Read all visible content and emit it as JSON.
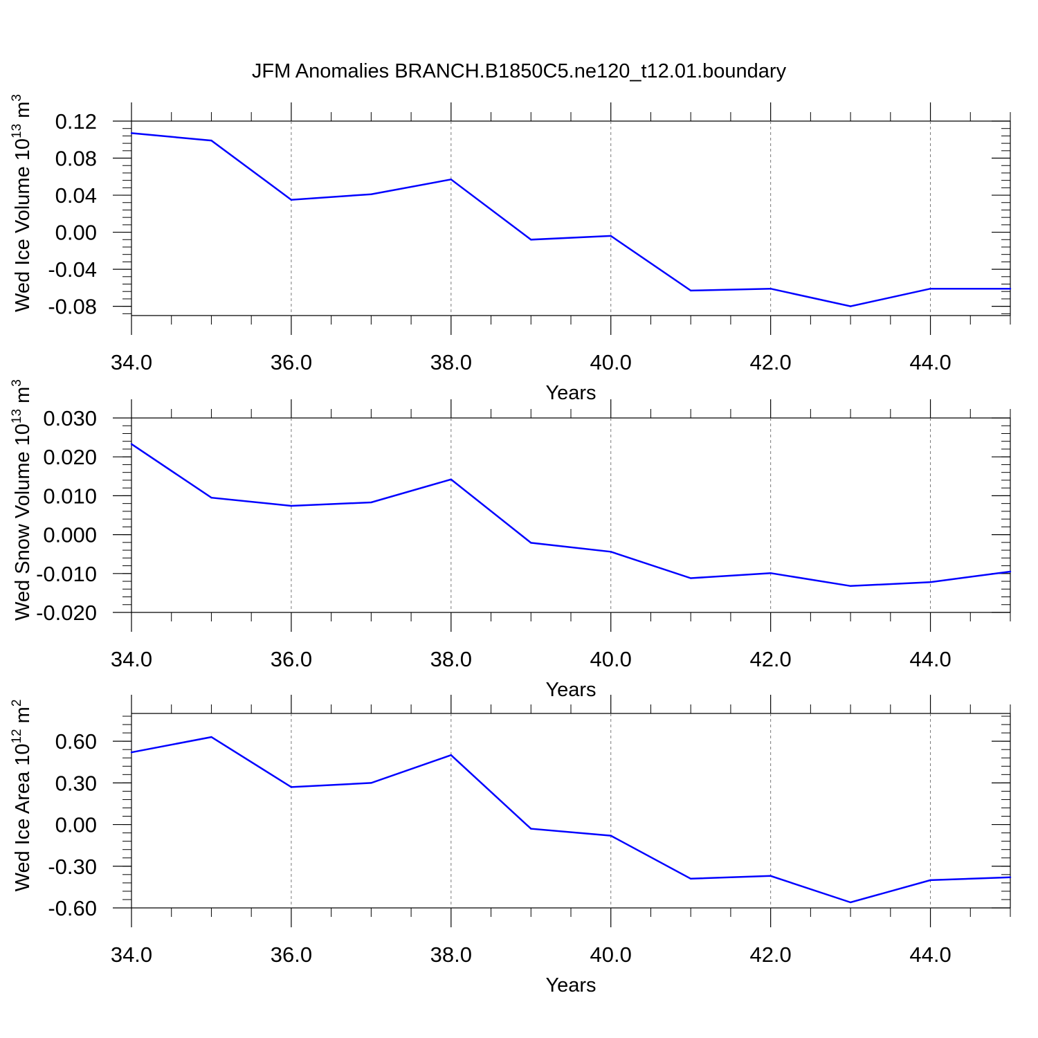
{
  "title": "JFM Anomalies BRANCH.B1850C5.ne120_t12.01.boundary",
  "line_color": "#0000ff",
  "chart_data": [
    {
      "type": "line",
      "ylabel": "Wed Ice Volume 10",
      "ylabel_exp": "13",
      "ylabel_unit": " m",
      "ylabel_unit_exp": "3",
      "xlabel": "Years",
      "xlim": [
        34,
        45
      ],
      "ylim": [
        -0.09,
        0.12
      ],
      "xticks": [
        34,
        36,
        38,
        40,
        42,
        44
      ],
      "xtick_labels": [
        "34.0",
        "36.0",
        "38.0",
        "40.0",
        "42.0",
        "44.0"
      ],
      "yticks": [
        0.12,
        0.08,
        0.04,
        0.0,
        -0.04,
        -0.08
      ],
      "ytick_labels": [
        "0.12",
        "0.08",
        "0.04",
        "0.00",
        "-0.04",
        "-0.08"
      ],
      "x": [
        34,
        35,
        36,
        37,
        38,
        39,
        40,
        41,
        42,
        43,
        44,
        45
      ],
      "values": [
        0.107,
        0.099,
        0.035,
        0.041,
        0.057,
        -0.008,
        -0.004,
        -0.063,
        -0.061,
        -0.08,
        -0.061,
        -0.061
      ]
    },
    {
      "type": "line",
      "ylabel": "Wed Snow Volume 10",
      "ylabel_exp": "13",
      "ylabel_unit": " m",
      "ylabel_unit_exp": "3",
      "xlabel": "Years",
      "xlim": [
        34,
        45
      ],
      "ylim": [
        -0.02,
        0.03
      ],
      "xticks": [
        34,
        36,
        38,
        40,
        42,
        44
      ],
      "xtick_labels": [
        "34.0",
        "36.0",
        "38.0",
        "40.0",
        "42.0",
        "44.0"
      ],
      "yticks": [
        0.03,
        0.02,
        0.01,
        0.0,
        -0.01,
        -0.02
      ],
      "ytick_labels": [
        "0.030",
        "0.020",
        "0.010",
        "0.000",
        "-0.010",
        "-0.020"
      ],
      "x": [
        34,
        35,
        36,
        37,
        38,
        39,
        40,
        41,
        42,
        43,
        44,
        45
      ],
      "values": [
        0.0233,
        0.0095,
        0.0074,
        0.0083,
        0.0142,
        -0.0021,
        -0.0044,
        -0.0112,
        -0.0099,
        -0.0132,
        -0.0122,
        -0.0095
      ]
    },
    {
      "type": "line",
      "ylabel": "Wed Ice Area 10",
      "ylabel_exp": "12",
      "ylabel_unit": " m",
      "ylabel_unit_exp": "2",
      "xlabel": "Years",
      "xlim": [
        34,
        45
      ],
      "ylim": [
        -0.6,
        0.8
      ],
      "xticks": [
        34,
        36,
        38,
        40,
        42,
        44
      ],
      "xtick_labels": [
        "34.0",
        "36.0",
        "38.0",
        "40.0",
        "42.0",
        "44.0"
      ],
      "yticks": [
        0.6,
        0.3,
        0.0,
        -0.3,
        -0.6
      ],
      "ytick_labels": [
        "0.60",
        "0.30",
        "0.00",
        "-0.30",
        "-0.60"
      ],
      "x": [
        34,
        35,
        36,
        37,
        38,
        39,
        40,
        41,
        42,
        43,
        44,
        45
      ],
      "values": [
        0.52,
        0.63,
        0.27,
        0.3,
        0.5,
        -0.03,
        -0.08,
        -0.39,
        -0.37,
        -0.56,
        -0.4,
        -0.38
      ]
    }
  ]
}
